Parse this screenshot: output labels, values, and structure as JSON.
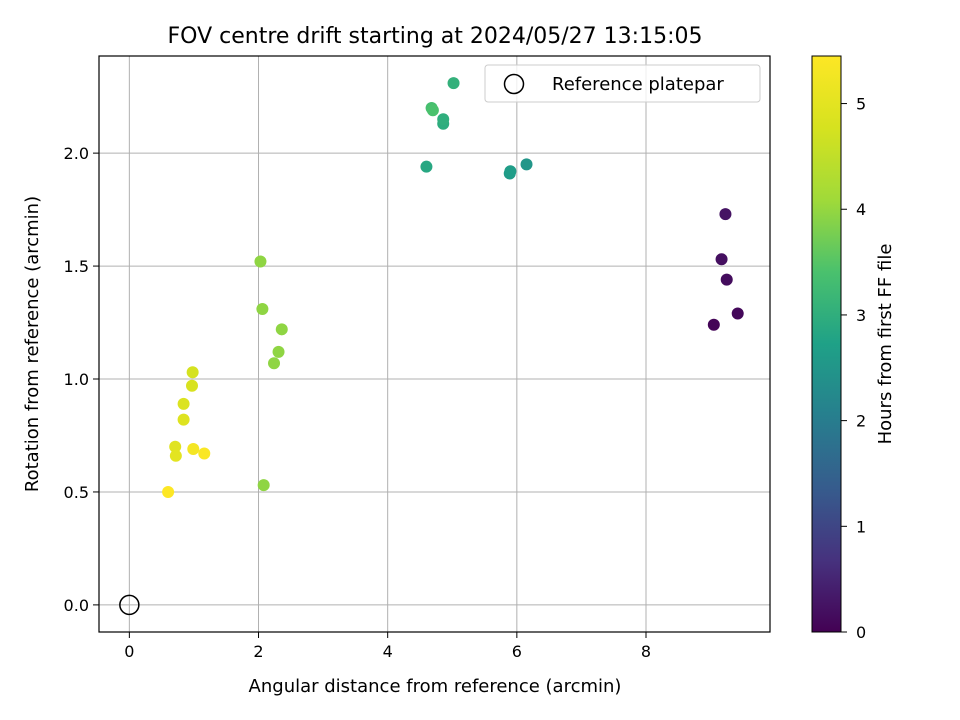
{
  "chart_data": {
    "type": "scatter",
    "title": "FOV centre drift starting at 2024/05/27 13:15:05",
    "xlabel": "Angular distance from reference (arcmin)",
    "ylabel": "Rotation from reference (arcmin)",
    "colorbar_label": "Hours from first FF file",
    "xlim": [
      -0.47,
      9.92
    ],
    "ylim": [
      -0.12,
      2.43
    ],
    "x_ticks": [
      0,
      2,
      4,
      6,
      8
    ],
    "y_ticks": [
      0.0,
      0.5,
      1.0,
      1.5,
      2.0
    ],
    "x_tick_labels": [
      "0",
      "2",
      "4",
      "6",
      "8"
    ],
    "y_tick_labels": [
      "0.0",
      "0.5",
      "1.0",
      "1.5",
      "2.0"
    ],
    "grid": true,
    "legend": {
      "location": "top-right",
      "entries": [
        "Reference platepar"
      ]
    },
    "colormap": "viridis",
    "color_range": [
      0,
      5.45
    ],
    "colorbar_ticks": [
      0,
      1,
      2,
      3,
      4,
      5
    ],
    "colorbar_tick_labels": [
      "0",
      "1",
      "2",
      "3",
      "4",
      "5"
    ],
    "reference_point": {
      "x": 0,
      "y": 0,
      "label": "Reference platepar"
    },
    "points": [
      {
        "x": 9.05,
        "y": 1.24,
        "hours": 0.05
      },
      {
        "x": 9.42,
        "y": 1.29,
        "hours": 0.1
      },
      {
        "x": 9.25,
        "y": 1.44,
        "hours": 0.15
      },
      {
        "x": 9.17,
        "y": 1.53,
        "hours": 0.2
      },
      {
        "x": 9.23,
        "y": 1.73,
        "hours": 0.25
      },
      {
        "x": 6.15,
        "y": 1.95,
        "hours": 2.5
      },
      {
        "x": 5.89,
        "y": 1.91,
        "hours": 2.6
      },
      {
        "x": 5.9,
        "y": 1.92,
        "hours": 2.65
      },
      {
        "x": 4.6,
        "y": 1.94,
        "hours": 2.85
      },
      {
        "x": 4.86,
        "y": 2.13,
        "hours": 2.95
      },
      {
        "x": 4.86,
        "y": 2.15,
        "hours": 3.0
      },
      {
        "x": 5.02,
        "y": 2.31,
        "hours": 3.05
      },
      {
        "x": 4.68,
        "y": 2.2,
        "hours": 3.35
      },
      {
        "x": 4.7,
        "y": 2.19,
        "hours": 3.4
      },
      {
        "x": 2.03,
        "y": 1.52,
        "hours": 3.95
      },
      {
        "x": 2.06,
        "y": 1.31,
        "hours": 3.95
      },
      {
        "x": 2.36,
        "y": 1.22,
        "hours": 3.95
      },
      {
        "x": 2.31,
        "y": 1.12,
        "hours": 3.95
      },
      {
        "x": 2.24,
        "y": 1.07,
        "hours": 3.95
      },
      {
        "x": 2.08,
        "y": 0.53,
        "hours": 3.95
      },
      {
        "x": 0.98,
        "y": 1.03,
        "hours": 4.75
      },
      {
        "x": 0.97,
        "y": 0.97,
        "hours": 4.8
      },
      {
        "x": 0.84,
        "y": 0.89,
        "hours": 4.85
      },
      {
        "x": 0.84,
        "y": 0.82,
        "hours": 4.9
      },
      {
        "x": 0.71,
        "y": 0.7,
        "hours": 4.95
      },
      {
        "x": 0.72,
        "y": 0.66,
        "hours": 5.0
      },
      {
        "x": 0.99,
        "y": 0.69,
        "hours": 5.3
      },
      {
        "x": 1.16,
        "y": 0.67,
        "hours": 5.4
      },
      {
        "x": 0.6,
        "y": 0.5,
        "hours": 5.45
      }
    ]
  }
}
